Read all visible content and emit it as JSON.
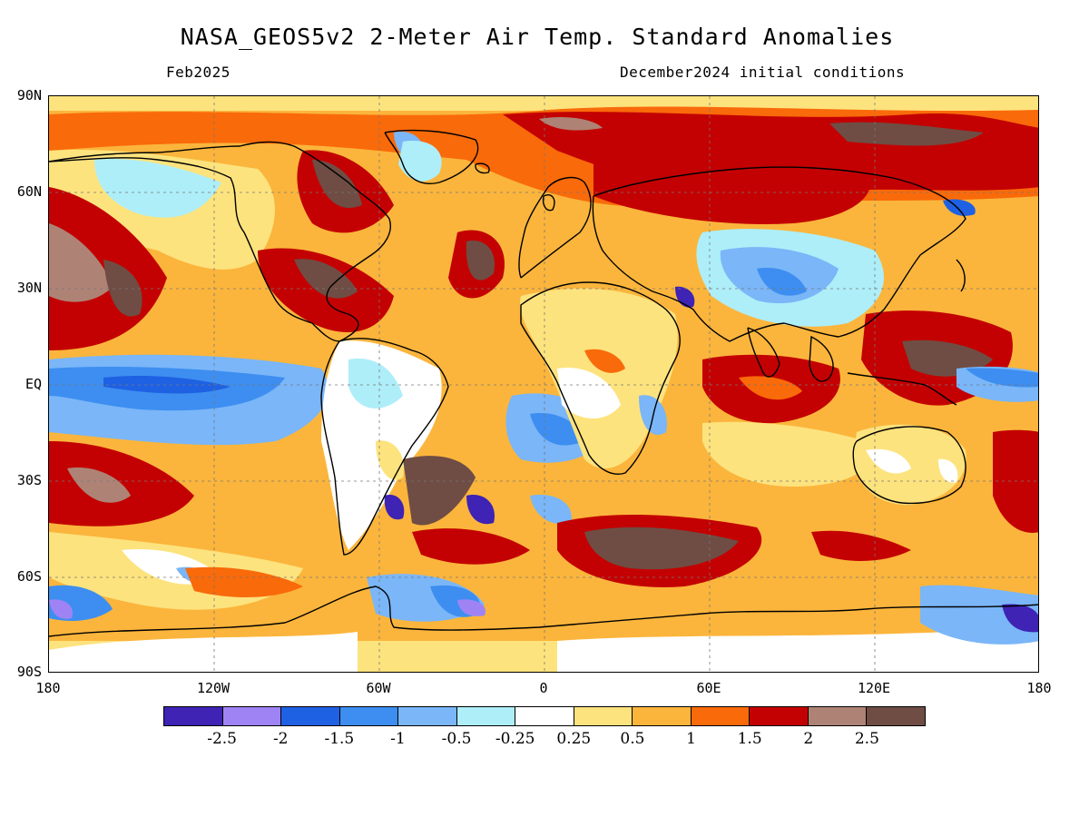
{
  "title": "NASA_GEOS5v2 2-Meter Air Temp. Standard Anomalies",
  "subtitle_left": "Feb2025",
  "subtitle_right": "December2024 initial conditions",
  "lat_labels": [
    "90N",
    "60N",
    "30N",
    "EQ",
    "30S",
    "60S",
    "90S"
  ],
  "lon_labels": [
    "180",
    "120W",
    "60W",
    "0",
    "60E",
    "120E",
    "180"
  ],
  "legend": {
    "colors": [
      "#3e23b4",
      "#9f83f4",
      "#1f61e3",
      "#3d8ef0",
      "#7ab6f8",
      "#aeeef8",
      "#ffffff",
      "#fde37e",
      "#fbb53c",
      "#f96a0a",
      "#c30102",
      "#ae8375",
      "#6f4d44"
    ],
    "labels": [
      "-2.5",
      "-2",
      "-1.5",
      "-1",
      "-0.5",
      "-0.25",
      "0.25",
      "0.5",
      "1",
      "1.5",
      "2",
      "2.5"
    ]
  },
  "icons": {
    "map": "global-anomaly-map",
    "colorbar": "color-scale-bar"
  }
}
